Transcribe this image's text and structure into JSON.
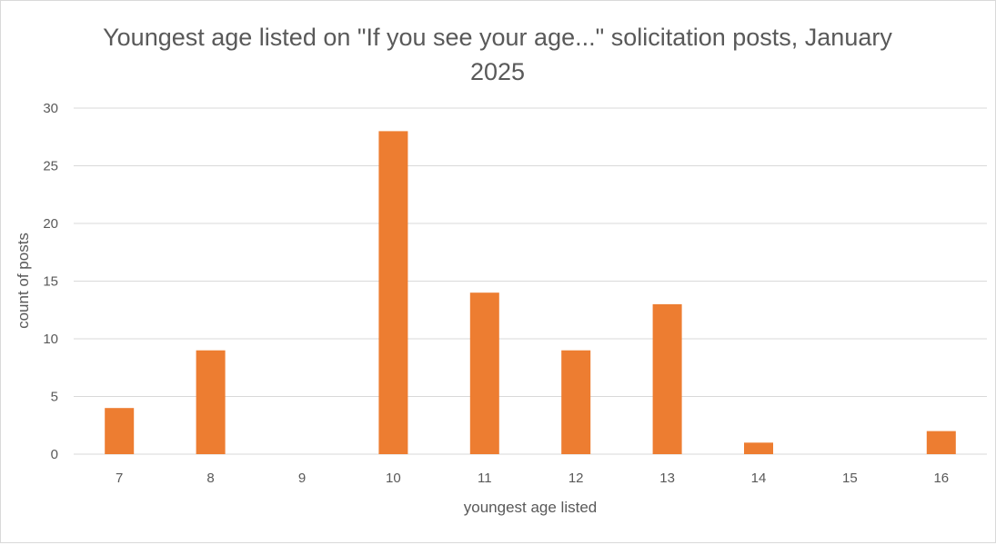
{
  "chart_data": {
    "type": "bar",
    "title": "Youngest age listed on \"If you see your age...\" solicitation posts, January 2025",
    "xlabel": "youngest age listed",
    "ylabel": "count of posts",
    "categories": [
      "7",
      "8",
      "9",
      "10",
      "11",
      "12",
      "13",
      "14",
      "15",
      "16"
    ],
    "values": [
      4,
      9,
      0,
      28,
      14,
      9,
      13,
      1,
      0,
      2
    ],
    "ylim": [
      0,
      30
    ],
    "yticks": [
      0,
      5,
      10,
      15,
      20,
      25,
      30
    ],
    "grid": true,
    "bar_color": "#ed7d31",
    "gridline_color": "#d9d9d9"
  }
}
